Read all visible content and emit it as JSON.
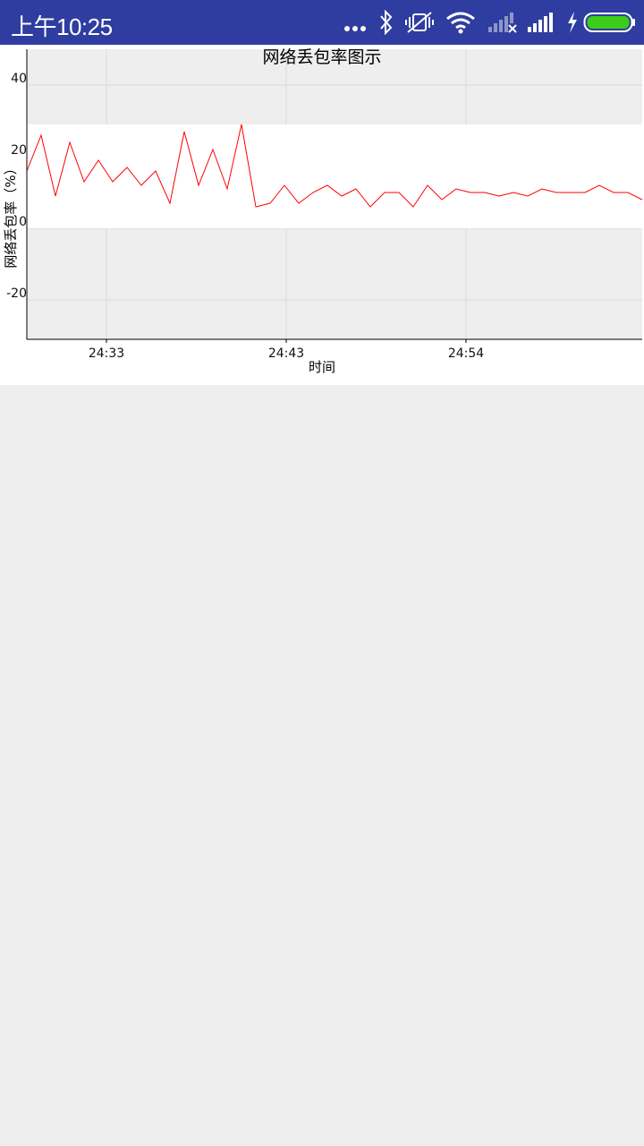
{
  "status_bar": {
    "time": "上午10:25",
    "icons": [
      "more-dots-icon",
      "bluetooth-icon",
      "vibrate-off-icon",
      "wifi-icon",
      "signal-no-service-icon",
      "signal-full-icon",
      "charging-bolt-icon",
      "battery-icon"
    ],
    "battery_color": "#3dcc1a",
    "background": "#2f3da0"
  },
  "chart_data": {
    "type": "line",
    "title": "网络丢包率图示",
    "xlabel": "时间",
    "ylabel": "网络丢包率（%）",
    "yticks": [
      "40",
      "20",
      "0",
      "-20"
    ],
    "ylim": [
      -31,
      50
    ],
    "xticks": [
      "24:33",
      "24:43",
      "24:54"
    ],
    "line_color": "#ff0000",
    "grid": true,
    "series": [
      {
        "values": [
          16,
          26,
          9,
          24,
          13,
          19,
          13,
          17,
          12,
          16,
          7,
          27,
          12,
          22,
          11,
          29,
          6,
          7,
          12,
          7,
          10,
          12,
          9,
          11,
          6,
          10,
          10,
          6,
          12,
          8,
          11,
          10,
          10,
          9,
          10,
          9,
          11,
          10,
          10,
          10,
          12,
          10,
          10,
          8
        ]
      }
    ]
  }
}
